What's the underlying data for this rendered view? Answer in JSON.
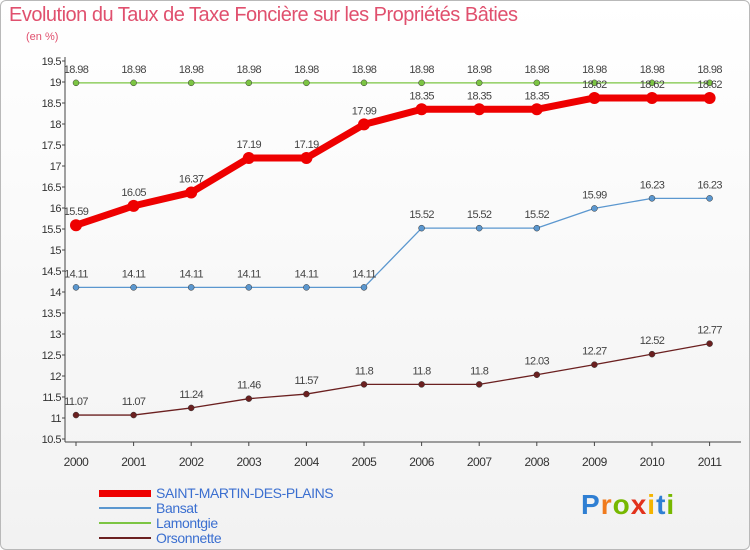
{
  "title": "Evolution du Taux de Taxe Foncière sur les Propriétés Bâties",
  "subtitle": "(en %)",
  "brand": {
    "letters": [
      "P",
      "r",
      "o",
      "x",
      "i",
      "t",
      "i"
    ]
  },
  "chart_data": {
    "type": "line",
    "x": [
      "2000",
      "2001",
      "2002",
      "2003",
      "2004",
      "2005",
      "2006",
      "2007",
      "2008",
      "2009",
      "2010",
      "2011"
    ],
    "ylim": [
      10.5,
      19.5
    ],
    "yticks": [
      10.5,
      11,
      11.5,
      12,
      12.5,
      13,
      13.5,
      14,
      14.5,
      15,
      15.5,
      16,
      16.5,
      17,
      17.5,
      18,
      18.5,
      19,
      19.5
    ],
    "grid": false,
    "legend_position": "bottom-left",
    "series": [
      {
        "name": "SAINT-MARTIN-DES-PLAINS",
        "color": "#ee0000",
        "bold": true,
        "values": [
          15.59,
          16.05,
          16.37,
          17.19,
          17.19,
          17.99,
          18.35,
          18.35,
          18.35,
          18.62,
          18.62,
          18.62
        ],
        "labels": [
          "15.59",
          "16.05",
          "16.37",
          "17.19",
          "17.19",
          "17.99",
          "18.35",
          "18.35",
          "18.35",
          "18.62",
          "18.62",
          "18.62"
        ]
      },
      {
        "name": "Bansat",
        "color": "#5b97cf",
        "bold": false,
        "values": [
          14.11,
          14.11,
          14.11,
          14.11,
          14.11,
          14.11,
          15.52,
          15.52,
          15.52,
          15.99,
          16.23,
          16.23
        ],
        "labels": [
          "14.11",
          "14.11",
          "14.11",
          "14.11",
          "14.11",
          "14.11",
          "15.52",
          "15.52",
          "15.52",
          "15.99",
          "16.23",
          "16.23"
        ]
      },
      {
        "name": "Lamontgie",
        "color": "#7cc543",
        "bold": false,
        "values": [
          18.98,
          18.98,
          18.98,
          18.98,
          18.98,
          18.98,
          18.98,
          18.98,
          18.98,
          18.98,
          18.98,
          18.98
        ],
        "labels": [
          "18.98",
          "18.98",
          "18.98",
          "18.98",
          "18.98",
          "18.98",
          "18.98",
          "18.98",
          "18.98",
          "18.98",
          "18.98",
          "18.98"
        ]
      },
      {
        "name": "Orsonnette",
        "color": "#6b2020",
        "bold": false,
        "values": [
          11.07,
          11.07,
          11.24,
          11.46,
          11.57,
          11.8,
          11.8,
          11.8,
          12.03,
          12.27,
          12.52,
          12.77
        ],
        "labels": [
          "11.07",
          "11.07",
          "11.24",
          "11.46",
          "11.57",
          "11.8",
          "11.8",
          "11.8",
          "12.03",
          "12.27",
          "12.52",
          "12.77"
        ]
      }
    ],
    "legend_order": [
      0,
      1,
      2,
      3
    ]
  }
}
